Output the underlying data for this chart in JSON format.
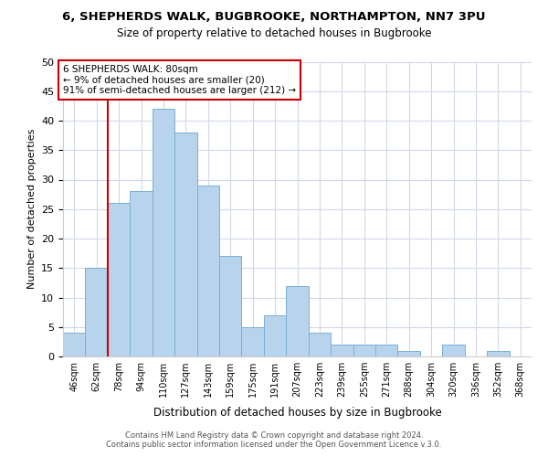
{
  "title": "6, SHEPHERDS WALK, BUGBROOKE, NORTHAMPTON, NN7 3PU",
  "subtitle": "Size of property relative to detached houses in Bugbrooke",
  "xlabel": "Distribution of detached houses by size in Bugbrooke",
  "ylabel": "Number of detached properties",
  "bar_labels": [
    "46sqm",
    "62sqm",
    "78sqm",
    "94sqm",
    "110sqm",
    "127sqm",
    "143sqm",
    "159sqm",
    "175sqm",
    "191sqm",
    "207sqm",
    "223sqm",
    "239sqm",
    "255sqm",
    "271sqm",
    "288sqm",
    "304sqm",
    "320sqm",
    "336sqm",
    "352sqm",
    "368sqm"
  ],
  "bar_values": [
    4,
    15,
    26,
    28,
    42,
    38,
    29,
    17,
    5,
    7,
    12,
    4,
    2,
    2,
    2,
    1,
    0,
    2,
    0,
    1,
    0
  ],
  "bar_color": "#b8d4ec",
  "bar_edge_color": "#7aafd4",
  "annotation_title": "6 SHEPHERDS WALK: 80sqm",
  "annotation_line1": "← 9% of detached houses are smaller (20)",
  "annotation_line2": "91% of semi-detached houses are larger (212) →",
  "vline_index": 2,
  "vline_color": "#cc0000",
  "annotation_box_color": "#ffffff",
  "annotation_box_edge": "#cc0000",
  "ylim": [
    0,
    50
  ],
  "yticks": [
    0,
    5,
    10,
    15,
    20,
    25,
    30,
    35,
    40,
    45,
    50
  ],
  "footer_line1": "Contains HM Land Registry data © Crown copyright and database right 2024.",
  "footer_line2": "Contains public sector information licensed under the Open Government Licence v.3.0.",
  "background_color": "#ffffff",
  "grid_color": "#d0d8e8"
}
